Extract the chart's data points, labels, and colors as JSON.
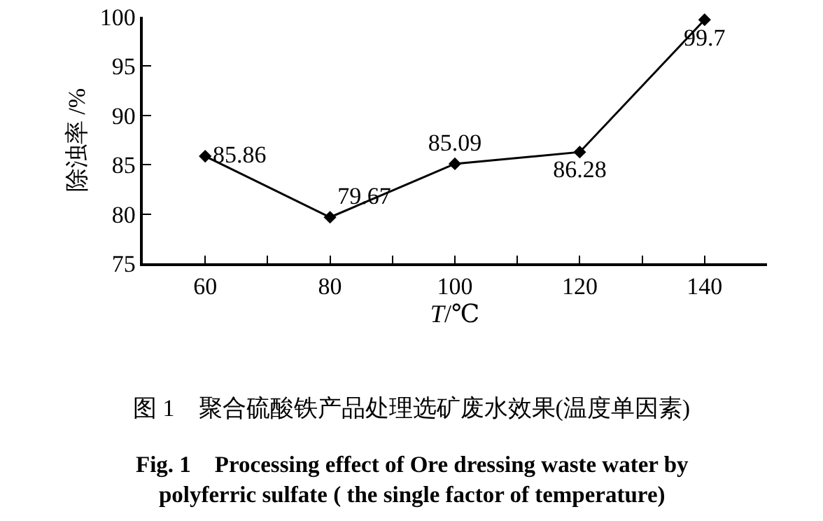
{
  "chart_data": {
    "type": "line",
    "title": "图 1　聚合硫酸铁产品处理选矿废水效果(温度单因素)",
    "subtitle": "Fig. 1　Processing effect of Ore dressing waste water by polyferric sulfate ( the single factor of temperature)",
    "xlabel": "T/℃",
    "ylabel": "除浊率 /%",
    "x": [
      60,
      80,
      100,
      120,
      140
    ],
    "series": [
      {
        "color": "#000000",
        "values": [
          85.86,
          79.67,
          85.09,
          86.28,
          99.7
        ]
      }
    ],
    "xlim": [
      50,
      150
    ],
    "xticks": [
      60,
      {
        "value": 70,
        "label": null
      },
      80,
      {
        "value": 90,
        "label": null
      },
      100,
      {
        "value": 110,
        "label": null
      },
      120,
      {
        "value": 130,
        "label": null
      },
      140
    ],
    "ylim": [
      75,
      100
    ],
    "yticks": [
      75,
      80,
      85,
      90,
      95,
      100
    ],
    "data_labels": true,
    "marker": "diamond",
    "line_style": "solid",
    "grid": false
  }
}
